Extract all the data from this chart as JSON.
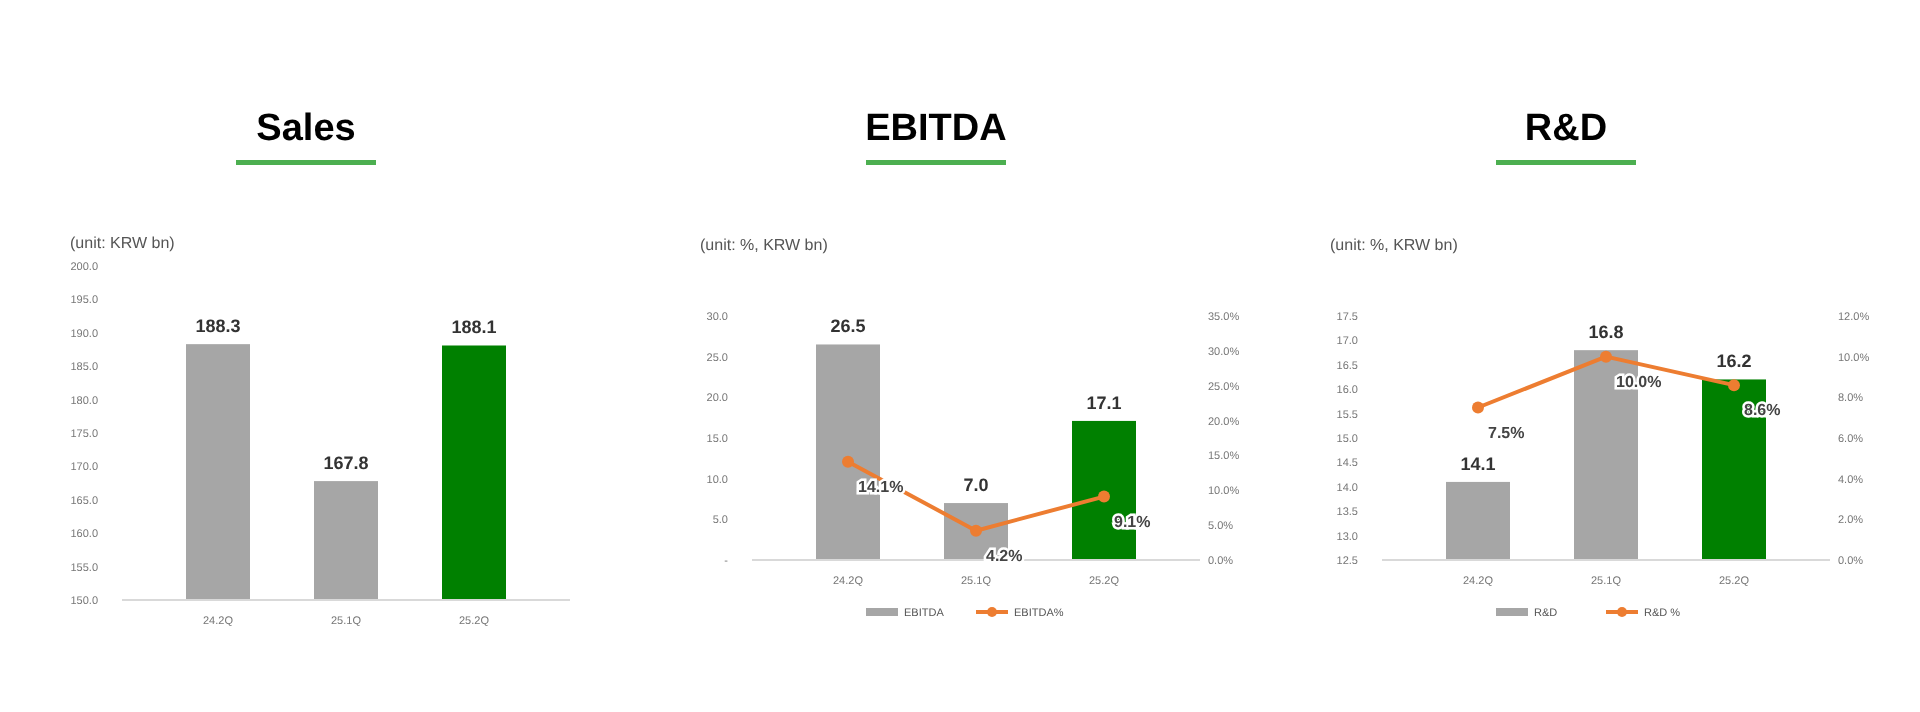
{
  "chart_data": [
    {
      "type": "bar",
      "title": "Sales",
      "subtitle": "(unit: KRW bn)",
      "categories": [
        "24.2Q",
        "25.1Q",
        "25.2Q"
      ],
      "series": [
        {
          "colors": [
            "#a6a6a6",
            "#a6a6a6",
            "#008000"
          ],
          "values": [
            188.3,
            167.8,
            188.1
          ],
          "value_labels": [
            "188.3",
            "167.8",
            "188.1"
          ]
        }
      ],
      "ylim": [
        150,
        200
      ],
      "yticks": [
        {
          "value": 150,
          "label": "150.0"
        },
        {
          "value": 155,
          "label": "155.0"
        },
        {
          "value": 160,
          "label": "160.0"
        },
        {
          "value": 165,
          "label": "165.0"
        },
        {
          "value": 170,
          "label": "170.0"
        },
        {
          "value": 175,
          "label": "175.0"
        },
        {
          "value": 180,
          "label": "180.0"
        },
        {
          "value": 185,
          "label": "185.0"
        },
        {
          "value": 190,
          "label": "190.0"
        },
        {
          "value": 195,
          "label": "195.0"
        },
        {
          "value": 200,
          "label": "200.0"
        }
      ],
      "legend": false
    },
    {
      "type": "bar",
      "title": "EBITDA",
      "subtitle": "(unit: %, KRW bn)",
      "categories": [
        "24.2Q",
        "25.1Q",
        "25.2Q"
      ],
      "series": [
        {
          "name": "EBITDA",
          "color": "#a6a6a6",
          "colors": [
            "#a6a6a6",
            "#a6a6a6",
            "#008000"
          ],
          "values": [
            26.5,
            7.0,
            17.1
          ],
          "value_labels": [
            "26.5",
            "7.0",
            "17.1"
          ]
        },
        {
          "name": "EBITDA%",
          "type": "line",
          "axis": "y2",
          "color": "#ed7d31",
          "marker": "circle",
          "values": [
            14.1,
            4.2,
            9.1
          ],
          "value_labels": [
            "14.1%",
            "4.2%",
            "9.1%"
          ]
        }
      ],
      "ylim": [
        0,
        30
      ],
      "yticks": [
        {
          "value": 0,
          "label": "-"
        },
        {
          "value": 5,
          "label": "5.0"
        },
        {
          "value": 10,
          "label": "10.0"
        },
        {
          "value": 15,
          "label": "15.0"
        },
        {
          "value": 20,
          "label": "20.0"
        },
        {
          "value": 25,
          "label": "25.0"
        },
        {
          "value": 30,
          "label": "30.0"
        }
      ],
      "y2lim": [
        0,
        35
      ],
      "y2ticks": [
        {
          "value": 0,
          "label": "0.0%"
        },
        {
          "value": 5,
          "label": "5.0%"
        },
        {
          "value": 10,
          "label": "10.0%"
        },
        {
          "value": 15,
          "label": "15.0%"
        },
        {
          "value": 20,
          "label": "20.0%"
        },
        {
          "value": 25,
          "label": "25.0%"
        },
        {
          "value": 30,
          "label": "30.0%"
        },
        {
          "value": 35,
          "label": "35.0%"
        }
      ],
      "legend": "bottom"
    },
    {
      "type": "bar",
      "title": "R&D",
      "subtitle": "(unit: %, KRW bn)",
      "categories": [
        "24.2Q",
        "25.1Q",
        "25.2Q"
      ],
      "series": [
        {
          "name": "R&D",
          "color": "#a6a6a6",
          "colors": [
            "#a6a6a6",
            "#a6a6a6",
            "#008000"
          ],
          "values": [
            14.1,
            16.8,
            16.2
          ],
          "value_labels": [
            "14.1",
            "16.8",
            "16.2"
          ]
        },
        {
          "name": "R&D %",
          "type": "line",
          "axis": "y2",
          "color": "#ed7d31",
          "marker": "circle",
          "values": [
            7.5,
            10.0,
            8.6
          ],
          "value_labels": [
            "7.5%",
            "10.0%",
            "8.6%"
          ]
        }
      ],
      "ylim": [
        12.5,
        17.5
      ],
      "yticks": [
        {
          "value": 12.5,
          "label": "12.5"
        },
        {
          "value": 13,
          "label": "13.0"
        },
        {
          "value": 13.5,
          "label": "13.5"
        },
        {
          "value": 14,
          "label": "14.0"
        },
        {
          "value": 14.5,
          "label": "14.5"
        },
        {
          "value": 15,
          "label": "15.0"
        },
        {
          "value": 15.5,
          "label": "15.5"
        },
        {
          "value": 16,
          "label": "16.0"
        },
        {
          "value": 16.5,
          "label": "16.5"
        },
        {
          "value": 17,
          "label": "17.0"
        },
        {
          "value": 17.5,
          "label": "17.5"
        }
      ],
      "y2lim": [
        0,
        12
      ],
      "y2ticks": [
        {
          "value": 0,
          "label": "0.0%"
        },
        {
          "value": 2,
          "label": "2.0%"
        },
        {
          "value": 4,
          "label": "4.0%"
        },
        {
          "value": 6,
          "label": "6.0%"
        },
        {
          "value": 8,
          "label": "8.0%"
        },
        {
          "value": 10,
          "label": "10.0%"
        },
        {
          "value": 12,
          "label": "12.0%"
        }
      ],
      "legend": "bottom"
    }
  ]
}
